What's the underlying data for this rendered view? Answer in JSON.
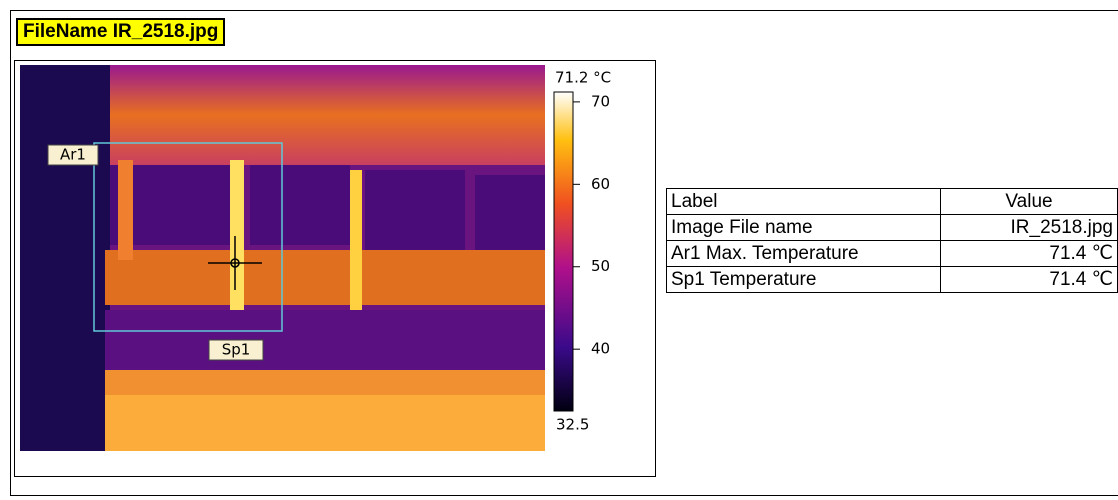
{
  "header": {
    "title": "FileName IR_2518.jpg"
  },
  "image": {
    "area_label": "Ar1",
    "spot_label": "Sp1"
  },
  "colorbar": {
    "top": {
      "value": 71.2,
      "label": "71.2 °C"
    },
    "bottom": 32.5,
    "ticks": [
      70,
      60,
      50,
      40
    ]
  },
  "table": {
    "header": [
      "Label",
      "Value"
    ],
    "rows": [
      [
        "Image File name",
        "IR_2518.jpg"
      ],
      [
        "Ar1 Max. Temperature",
        "71.4 ℃"
      ],
      [
        "Sp1 Temperature",
        "71.4 ℃"
      ]
    ]
  }
}
